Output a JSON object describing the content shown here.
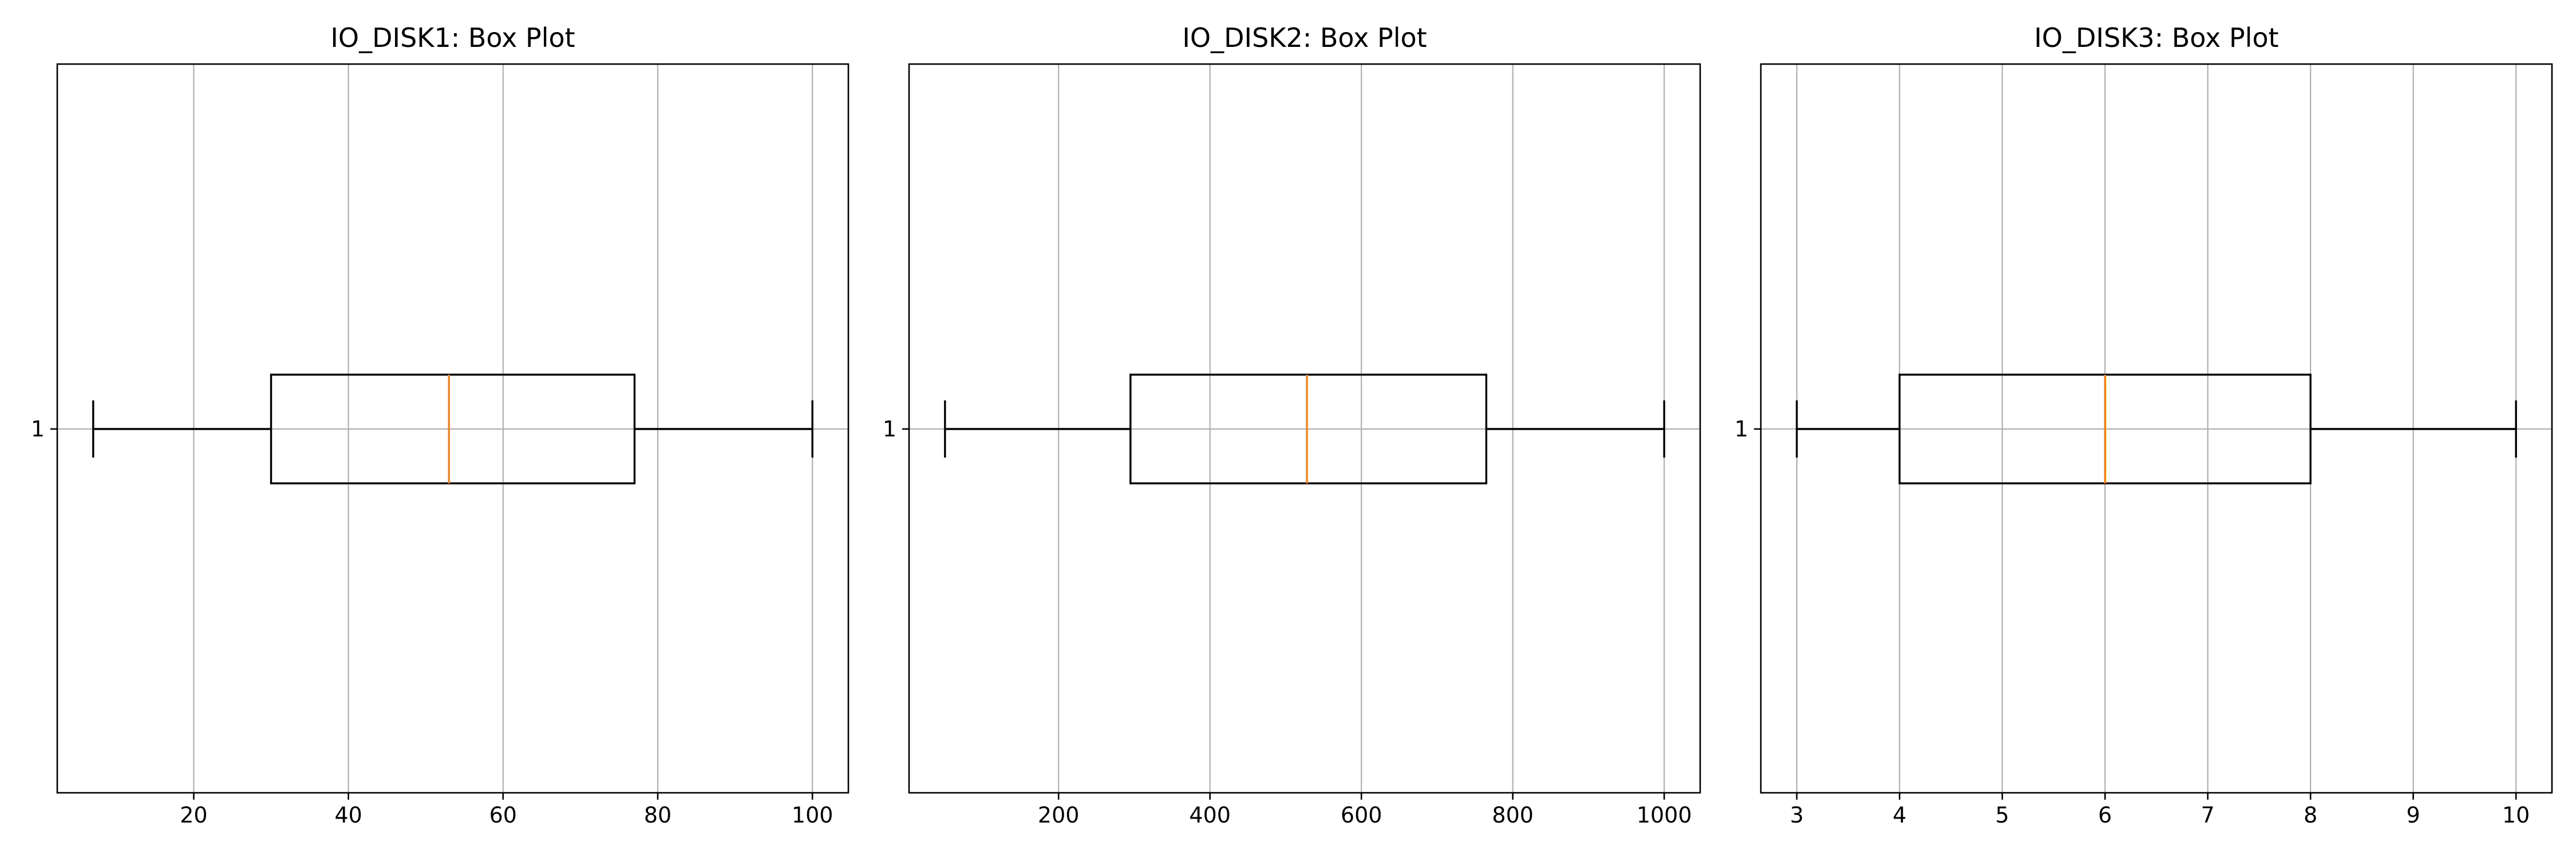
{
  "chart_data": [
    {
      "type": "box",
      "orientation": "horizontal",
      "title": "IO_DISK1: Box Plot",
      "category_labels": [
        "1"
      ],
      "xlim": [
        2.35,
        104.65
      ],
      "xticks": [
        20,
        40,
        60,
        80,
        100
      ],
      "grid": true,
      "box": {
        "whisker_low": 7,
        "q1": 30,
        "median": 53,
        "q3": 77,
        "whisker_high": 100
      }
    },
    {
      "type": "box",
      "orientation": "horizontal",
      "title": "IO_DISK2: Box Plot",
      "category_labels": [
        "1"
      ],
      "xlim": [
        2.5,
        1047.5
      ],
      "xticks": [
        200,
        400,
        600,
        800,
        1000
      ],
      "grid": true,
      "box": {
        "whisker_low": 50,
        "q1": 295,
        "median": 528,
        "q3": 765,
        "whisker_high": 1000
      }
    },
    {
      "type": "box",
      "orientation": "horizontal",
      "title": "IO_DISK3: Box Plot",
      "category_labels": [
        "1"
      ],
      "xlim": [
        2.65,
        10.35
      ],
      "xticks": [
        3,
        4,
        5,
        6,
        7,
        8,
        9,
        10
      ],
      "grid": true,
      "box": {
        "whisker_low": 3,
        "q1": 4,
        "median": 6,
        "q3": 8,
        "whisker_high": 10
      }
    }
  ],
  "colors": {
    "box": "#000000",
    "median": "#ff7f0e",
    "grid": "#b0b0b0"
  }
}
